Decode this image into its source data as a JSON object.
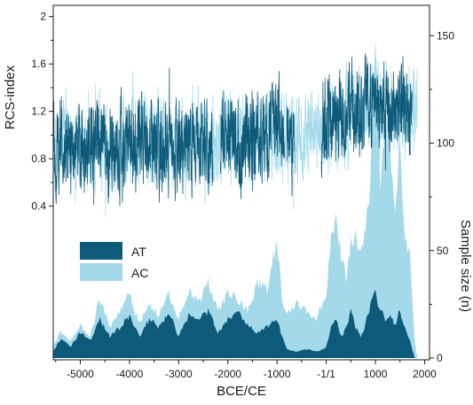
{
  "chart_data": {
    "type": "area",
    "xlabel": "BCE/CE",
    "x_ticks": [
      -5000,
      -4000,
      -3000,
      -2000,
      -1000,
      0,
      1000,
      2000
    ],
    "x_tick_labels": [
      "-5000",
      "-4000",
      "-3000",
      "-2000",
      "-1000",
      "-1/1",
      "1000",
      "2000"
    ],
    "xlim": [
      -5550,
      2100
    ],
    "panels": [
      {
        "id": "rcs",
        "type": "line",
        "ylabel": "RCS-index",
        "y_axis_side": "left",
        "ylim": [
          0.3,
          2.05
        ],
        "y_ticks": [
          0.4,
          0.8,
          1.2,
          1.6,
          2.0
        ],
        "y_tick_labels": [
          "0.4",
          "0.8",
          "1.2",
          "1.6",
          "2"
        ],
        "series": [
          {
            "name": "AT",
            "color": "#0d5a7a",
            "x": [
              -5500,
              -5200,
              -4900,
              -4600,
              -4300,
              -4000,
              -3700,
              -3400,
              -3100,
              -2800,
              -2500,
              -2200,
              -1900,
              -1600,
              -1300,
              -1000,
              -700,
              -400,
              -100,
              200,
              500,
              800,
              1100,
              1400,
              1700
            ],
            "y": [
              0.88,
              0.95,
              0.85,
              1.0,
              0.82,
              0.92,
              0.98,
              0.87,
              0.93,
              0.95,
              0.9,
              0.97,
              1.02,
              0.92,
              0.98,
              1.05,
              1.0,
              0.95,
              1.08,
              1.15,
              1.2,
              1.25,
              1.22,
              1.18,
              1.15
            ],
            "segments": [
              [
                -5550,
                -2300
              ],
              [
                -2150,
                -850
              ],
              [
                -800,
                -650
              ],
              [
                -100,
                1750
              ]
            ]
          },
          {
            "name": "AC",
            "color": "#a3d9e8",
            "x": [
              -5500,
              -5200,
              -4900,
              -4600,
              -4300,
              -4000,
              -3700,
              -3400,
              -3100,
              -2800,
              -2500,
              -2200,
              -1900,
              -1600,
              -1300,
              -1000,
              -700,
              -400,
              -100,
              200,
              500,
              800,
              1100,
              1400,
              1700,
              1850
            ],
            "y": [
              0.92,
              0.96,
              0.9,
              0.98,
              0.9,
              0.94,
              0.97,
              0.92,
              0.94,
              0.96,
              0.93,
              0.98,
              1.0,
              0.96,
              1.0,
              1.02,
              1.0,
              0.98,
              1.06,
              1.12,
              1.18,
              1.22,
              1.22,
              1.2,
              1.22,
              1.3
            ]
          }
        ]
      },
      {
        "id": "sample",
        "type": "area",
        "ylabel": "Sample size (n)",
        "y_axis_side": "right",
        "ylim": [
          0,
          160
        ],
        "y_ticks": [
          0,
          50,
          100,
          150
        ],
        "y_tick_labels": [
          "0",
          "50",
          "100",
          "150"
        ],
        "series": [
          {
            "name": "AC",
            "color": "#a3d9e8",
            "x": [
              -5550,
              -5400,
              -5200,
              -5000,
              -4800,
              -4600,
              -4400,
              -4200,
              -4000,
              -3800,
              -3600,
              -3400,
              -3200,
              -3000,
              -2800,
              -2600,
              -2400,
              -2200,
              -2000,
              -1800,
              -1600,
              -1400,
              -1200,
              -1000,
              -900,
              -800,
              -600,
              -400,
              -200,
              0,
              100,
              200,
              300,
              400,
              500,
              600,
              700,
              800,
              900,
              950,
              1000,
              1050,
              1100,
              1200,
              1300,
              1400,
              1500,
              1600,
              1700,
              1800,
              1850
            ],
            "values": [
              5,
              12,
              8,
              15,
              10,
              28,
              14,
              22,
              30,
              16,
              25,
              20,
              30,
              18,
              32,
              26,
              35,
              22,
              30,
              28,
              22,
              35,
              32,
              55,
              28,
              20,
              25,
              22,
              18,
              30,
              55,
              65,
              48,
              38,
              52,
              58,
              48,
              62,
              80,
              125,
              148,
              120,
              80,
              112,
              95,
              72,
              100,
              55,
              48,
              8,
              0
            ]
          },
          {
            "name": "AT",
            "color": "#0d5a7a",
            "x": [
              -5550,
              -5400,
              -5200,
              -5000,
              -4800,
              -4600,
              -4400,
              -4200,
              -4000,
              -3800,
              -3600,
              -3400,
              -3200,
              -3000,
              -2800,
              -2600,
              -2400,
              -2200,
              -2000,
              -1800,
              -1600,
              -1400,
              -1200,
              -1000,
              -900,
              -800,
              -600,
              -400,
              -200,
              0,
              100,
              200,
              300,
              400,
              500,
              600,
              700,
              800,
              900,
              1000,
              1100,
              1200,
              1300,
              1400,
              1500,
              1600,
              1700,
              1800
            ],
            "values": [
              3,
              9,
              5,
              12,
              8,
              18,
              10,
              14,
              20,
              10,
              18,
              14,
              22,
              10,
              20,
              18,
              22,
              12,
              18,
              22,
              15,
              12,
              15,
              18,
              10,
              4,
              3,
              4,
              3,
              5,
              15,
              18,
              10,
              14,
              22,
              14,
              10,
              16,
              25,
              30,
              22,
              18,
              20,
              15,
              22,
              14,
              8,
              0
            ]
          }
        ]
      }
    ],
    "legend": {
      "position": "middle-left",
      "entries": [
        {
          "label": "AT",
          "color": "#0d5a7a"
        },
        {
          "label": "AC",
          "color": "#a3d9e8"
        }
      ]
    },
    "grid": false
  }
}
